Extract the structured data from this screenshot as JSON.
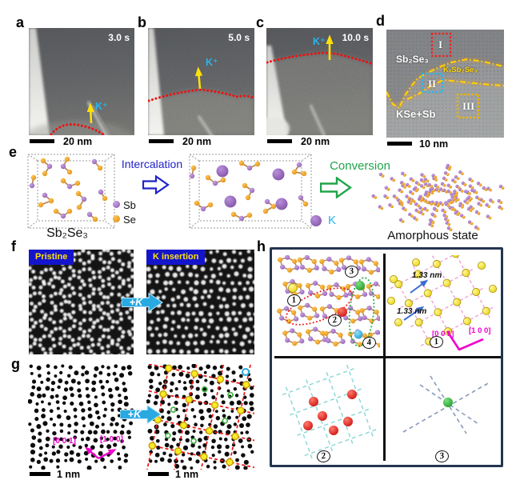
{
  "panels": {
    "a": {
      "label": "a",
      "time": "3.0 s",
      "ion": "K⁺",
      "scale_bar": "20 nm"
    },
    "b": {
      "label": "b",
      "time": "5.0 s",
      "ion": "K⁺",
      "scale_bar": "20 nm"
    },
    "c": {
      "label": "c",
      "time": "10.0 s",
      "ion": "K⁺",
      "scale_bar": "20 nm"
    },
    "d": {
      "label": "d",
      "scale_bar": "10 nm",
      "region_1": "I",
      "region_2": "II",
      "region_3": "III",
      "phase_pristine": "Sb₂Se₃",
      "phase_intermediate": "KₓSb₂Se₃",
      "phase_final": "KSe+Sb"
    },
    "e": {
      "label": "e",
      "formula": "Sb₂Se₃",
      "process_1": "Intercalation",
      "process_2": "Conversion",
      "result": "Amorphous state",
      "legend": {
        "sb": "Sb",
        "se": "Se",
        "k": "K"
      }
    },
    "f": {
      "label": "f",
      "left_title": "Pristine",
      "right_title": "K insertion",
      "arrow_label": "+K"
    },
    "g": {
      "label": "g",
      "arrow_label": "+K",
      "left_scale_bar": "1 nm",
      "right_scale_bar": "1 nm",
      "axis_c": "[0 0 1]",
      "axis_a": "[1 0 0]"
    },
    "h": {
      "label": "h",
      "distance_1": "1.33 nm",
      "distance_2": "1.33 nm",
      "axis_c": "[0 0 1]",
      "axis_a": "[1 0 0]",
      "site_1": "1",
      "site_2": "2",
      "site_3": "3",
      "site_4": "4",
      "quadrant_1": "1",
      "quadrant_2": "2",
      "quadrant_3": "3"
    }
  },
  "colors": {
    "potassium_ion_cyan": "#2ab4ee",
    "arrow_yellow": "#ffe10a",
    "reaction_front_red": "#ee1111",
    "sb_purple": "#9a6ab8",
    "se_orange": "#e8971c",
    "k_ball_purple": "#8a55b0",
    "banner_blue": "#1414cc",
    "banner_text_yellow": "#ffe10a",
    "intercalation_blue": "#2222c8",
    "conversion_green": "#1fa54a",
    "magenta_axis": "#ee00cc",
    "region_I_red": "#ee2222",
    "region_II_cyan": "#29b6f0",
    "region_III_yellow": "#f0b400",
    "k_arrow_cyan": "#29a9e1",
    "boundary_glow_yellow": "#ffd400"
  }
}
